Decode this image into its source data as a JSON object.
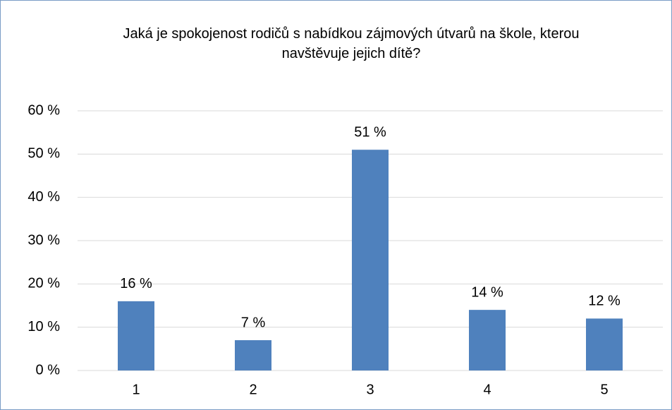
{
  "chart_data": {
    "type": "bar",
    "title": "Jaká je spokojenost rodičů s nabídkou zájmových útvarů na škole, kterou navštěvuje jejich dítě?",
    "categories": [
      "1",
      "2",
      "3",
      "4",
      "5"
    ],
    "values": [
      16,
      7,
      51,
      14,
      12
    ],
    "value_labels": [
      "16 %",
      "7 %",
      "51 %",
      "14 %",
      "12 %"
    ],
    "color": "#4f81bd",
    "ylim": [
      0,
      60
    ],
    "yticks": [
      {
        "value": 0,
        "label": "0 %"
      },
      {
        "value": 10,
        "label": "10 %"
      },
      {
        "value": 20,
        "label": "20 %"
      },
      {
        "value": 30,
        "label": "30 %"
      },
      {
        "value": 40,
        "label": "40 %"
      },
      {
        "value": 50,
        "label": "50 %"
      },
      {
        "value": 60,
        "label": "60 %"
      }
    ],
    "grid": true
  }
}
